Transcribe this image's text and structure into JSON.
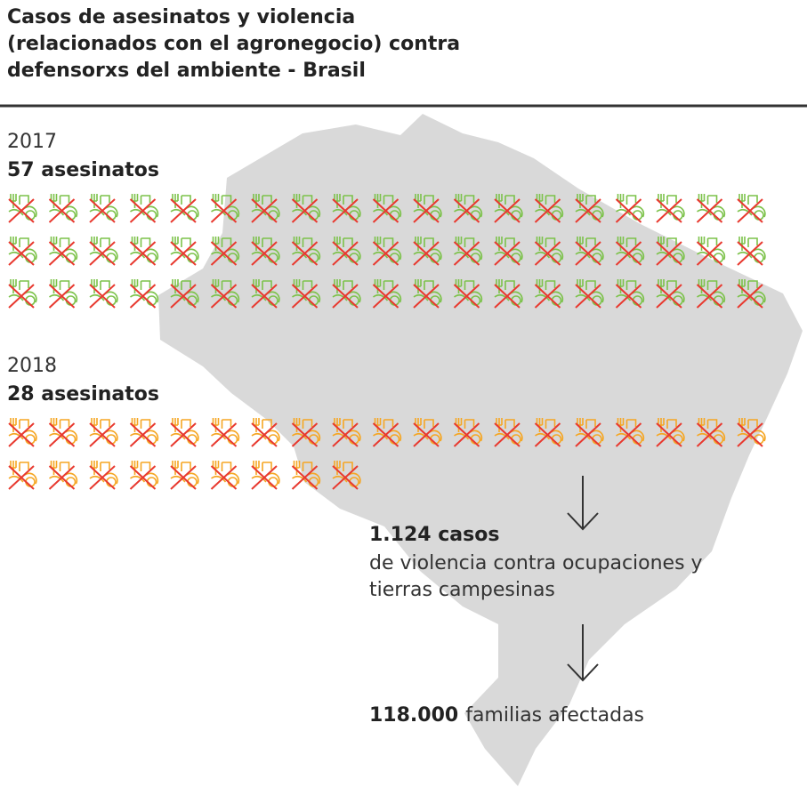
{
  "chart_data": {
    "type": "pictograph",
    "title": [
      "Casos de asesinatos y violencia",
      "(relacionados con el agronegocio) contra",
      "defensorxs del ambiente - Brasil"
    ],
    "groups": [
      {
        "year": "2017",
        "label": "57 asesinatos",
        "value": 57,
        "color": "#7cc24a"
      },
      {
        "year": "2018",
        "label": "28 asesinatos",
        "value": 28,
        "color": "#f5a623"
      }
    ],
    "cross_color": "#e8392f",
    "per_row": 19,
    "violence": {
      "bold": "1.124 casos",
      "lines": [
        "de violencia contra ocupaciones y",
        "tierras campesinas"
      ]
    },
    "families": {
      "bold": "118.000",
      "text": "familias afectadas"
    }
  }
}
